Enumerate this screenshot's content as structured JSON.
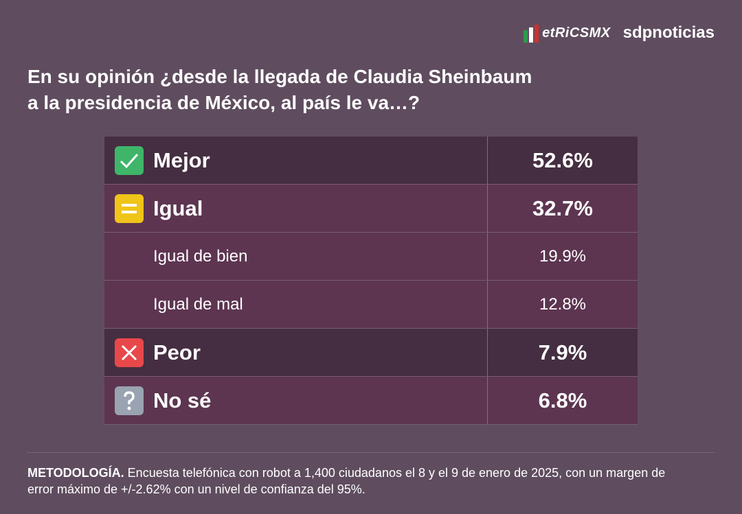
{
  "logos": {
    "metrics": "etRiCSMX",
    "sdp": "sdpnoticias"
  },
  "title": [
    "En su opinión ¿desde la llegada de Claudia Sheinbaum",
    "a la presidencia de México, al país le va…?"
  ],
  "table": {
    "rows": [
      [
        "Mejor",
        "52.6%"
      ],
      [
        "Igual",
        "32.7%"
      ],
      [
        "Igual de bien",
        "19.9%"
      ],
      [
        "Igual de mal",
        "12.8%"
      ],
      [
        "Peor",
        "7.9%"
      ],
      [
        "No sé",
        "6.8%"
      ]
    ]
  },
  "footer": {
    "label": "METODOLOGÍA.",
    "text": " Encuesta telefónica con robot a 1,400 ciudadanos el 8 y el 9 de enero de 2025, con un margen de error máximo de +/-2.62% con un nivel de confianza del 95%."
  }
}
